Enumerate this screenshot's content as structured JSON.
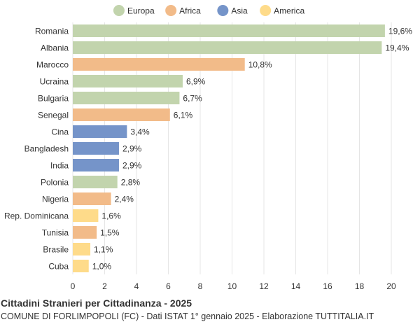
{
  "colors": {
    "Europa": "#c2d4ad",
    "Africa": "#f2bb89",
    "Asia": "#7594c9",
    "America": "#fedb8a",
    "grid": "#e5e5e5",
    "text": "#333333"
  },
  "chart_data": {
    "type": "bar",
    "orientation": "horizontal",
    "title": "Cittadini Stranieri per Cittadinanza - 2025",
    "subtitle": "COMUNE DI FORLIMPOPOLI (FC) - Dati ISTAT 1° gennaio 2025 - Elaborazione TUTTITALIA.IT",
    "legend": {
      "position": "top",
      "items": [
        "Europa",
        "Africa",
        "Asia",
        "America"
      ]
    },
    "categories": [
      "Romania",
      "Albania",
      "Marocco",
      "Ucraina",
      "Bulgaria",
      "Senegal",
      "Cina",
      "Bangladesh",
      "India",
      "Polonia",
      "Nigeria",
      "Rep. Dominicana",
      "Tunisia",
      "Brasile",
      "Cuba"
    ],
    "values": [
      19.6,
      19.4,
      10.8,
      6.9,
      6.7,
      6.1,
      3.4,
      2.9,
      2.9,
      2.8,
      2.4,
      1.6,
      1.5,
      1.1,
      1.0
    ],
    "value_labels": [
      "19,6%",
      "19,4%",
      "10,8%",
      "6,9%",
      "6,7%",
      "6,1%",
      "3,4%",
      "2,9%",
      "2,9%",
      "2,8%",
      "2,4%",
      "1,6%",
      "1,5%",
      "1,1%",
      "1,0%"
    ],
    "groups": [
      "Europa",
      "Europa",
      "Africa",
      "Europa",
      "Europa",
      "Africa",
      "Asia",
      "Asia",
      "Asia",
      "Europa",
      "Africa",
      "America",
      "Africa",
      "America",
      "America"
    ],
    "xlim": [
      0,
      20
    ],
    "xticks": [
      0,
      2,
      4,
      6,
      8,
      10,
      12,
      14,
      16,
      18,
      20
    ],
    "grid": true
  }
}
